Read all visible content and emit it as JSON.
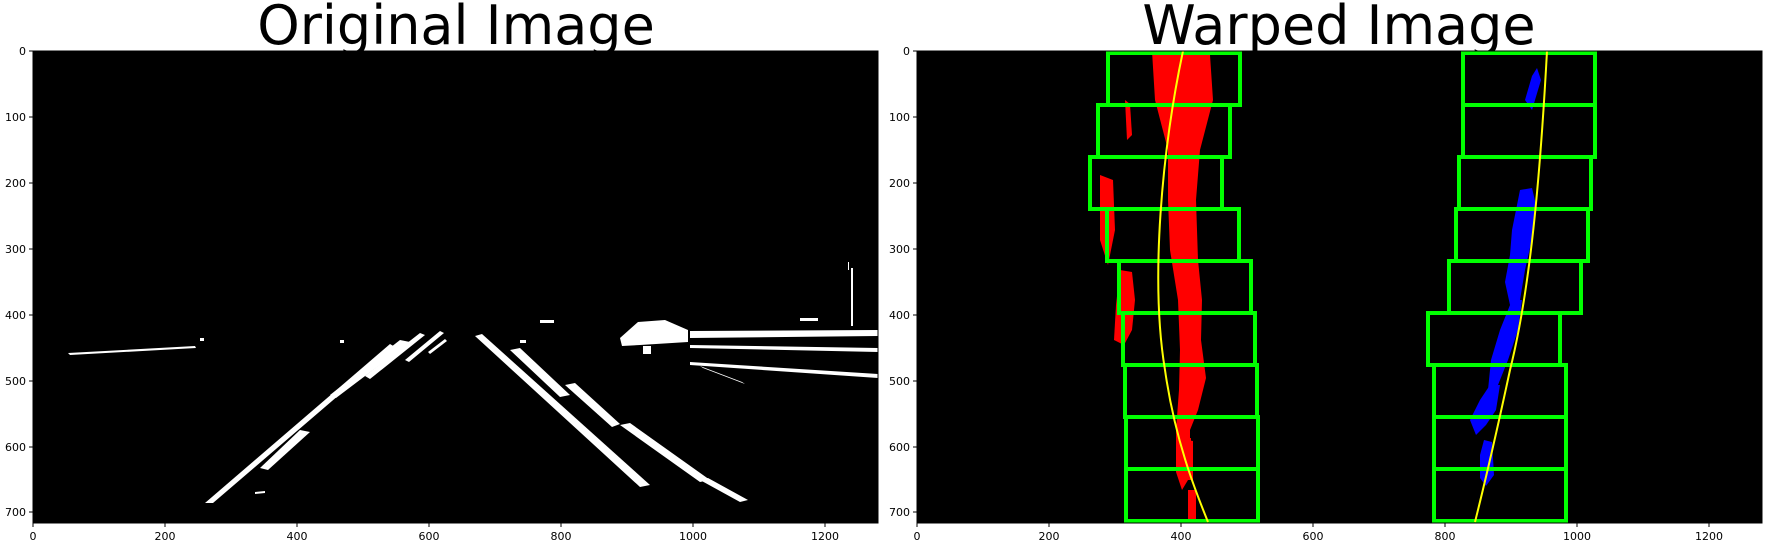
{
  "panels": [
    {
      "title": "Original Image",
      "x_ticks": [
        "0",
        "200",
        "400",
        "600",
        "800",
        "1000",
        "1200"
      ],
      "y_ticks": [
        "0",
        "100",
        "200",
        "300",
        "400",
        "500",
        "600",
        "700"
      ],
      "image_content": "binary-thresholded road frame: white lane-line pixels on black"
    },
    {
      "title": "Warped Image",
      "x_ticks": [
        "0",
        "200",
        "400",
        "600",
        "800",
        "1000",
        "1200"
      ],
      "y_ticks": [
        "0",
        "100",
        "200",
        "300",
        "400",
        "500",
        "600",
        "700"
      ],
      "image_content": "bird's-eye warped binary with sliding-window lane search",
      "colors": {
        "left_lane_pixels": "#ff0000",
        "right_lane_pixels": "#0000ff",
        "search_windows": "#00ff00",
        "polynomial_fit": "#ffff00",
        "background": "#000000"
      }
    }
  ]
}
